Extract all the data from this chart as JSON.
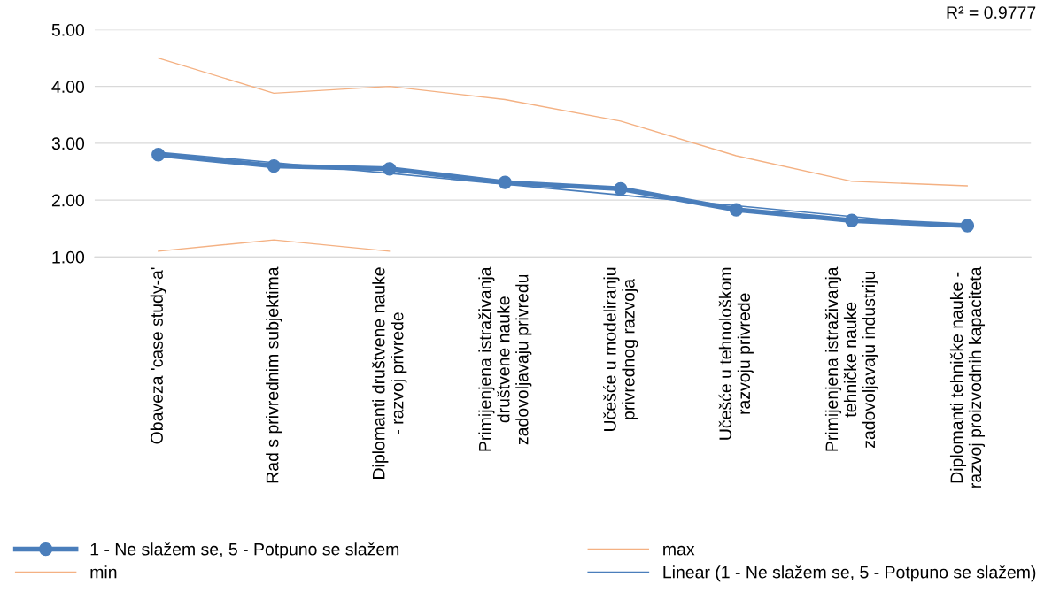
{
  "chart_data": {
    "type": "line",
    "categories": [
      "Obaveza 'case study-a'",
      "Rad s privrednim subjektima",
      "Diplomanti društvene nauke\n- razvoj privrede",
      "Primijenjena istraživanja\ndruštvene nauke\nzadovoljavaju privredu",
      "Učešće u modeliranju\nprivrednog razvoja",
      "Učešće u tehnološkom\nrazvoju privrede",
      "Primijenjena istraživanja\ntehničke nauke\nzadovoljavaju industriju",
      "Diplomanti tehničke nauke -\nrazvoj proizvodnih kapaciteta"
    ],
    "series": [
      {
        "name": "1 - Ne slažem se, 5 - Potpuno se slažem",
        "color": "#4a7ebb",
        "marker": "circle",
        "values": [
          2.8,
          2.6,
          2.55,
          2.31,
          2.2,
          1.83,
          1.64,
          1.55
        ]
      },
      {
        "name": "max",
        "color": "#f4b183",
        "values": [
          4.5,
          3.88,
          4.0,
          3.77,
          3.39,
          2.78,
          2.33,
          2.25
        ]
      },
      {
        "name": "min",
        "color": "#f4b183",
        "values": [
          1.1,
          1.3,
          1.1,
          null,
          null,
          null,
          null,
          null
        ]
      },
      {
        "name": "Linear (1 - Ne slažem se, 5 - Potpuno se slažem)",
        "color": "#4a7ebb",
        "values": [
          2.84,
          2.66,
          2.47,
          2.28,
          2.09,
          1.9,
          1.71,
          1.53
        ]
      }
    ],
    "ylim": [
      1,
      5
    ],
    "yticks": [
      {
        "value": 1,
        "label": "1.00"
      },
      {
        "value": 2,
        "label": "2.00"
      },
      {
        "value": 3,
        "label": "3.00"
      },
      {
        "value": 4,
        "label": "4.00"
      },
      {
        "value": 5,
        "label": "5.00"
      }
    ],
    "grid": "y",
    "legend": "bottom",
    "annotations": [
      "R² = 0.9777"
    ]
  }
}
